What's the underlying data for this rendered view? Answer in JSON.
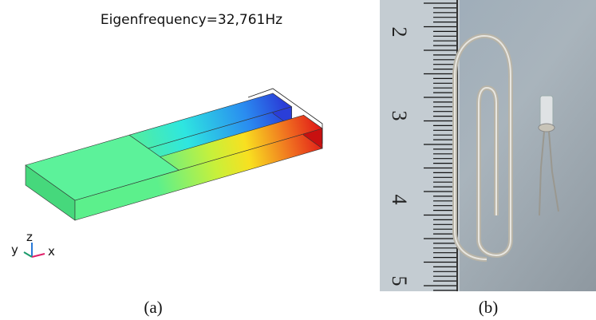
{
  "panel_a": {
    "title": "Eigenfrequency=32,761Hz",
    "axis_labels": {
      "x": "x",
      "y": "y",
      "z": "z"
    },
    "caption": "(a)"
  },
  "panel_b": {
    "ruler_labels": [
      "2",
      "3",
      "4",
      "5"
    ],
    "caption": "(b)"
  }
}
